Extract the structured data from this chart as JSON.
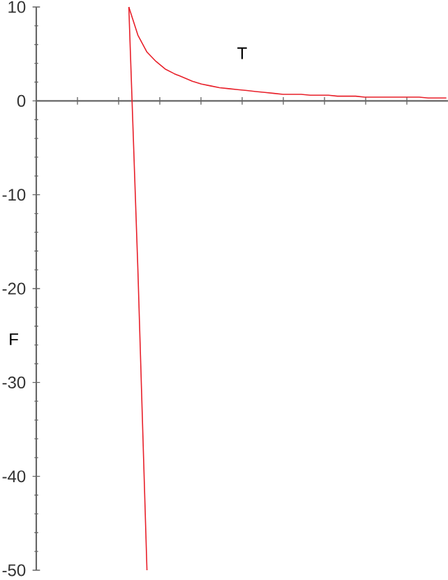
{
  "chart_data": {
    "type": "line",
    "xlabel": "T",
    "ylabel": "F",
    "ylim": [
      -50,
      10
    ],
    "yticks": [
      -50,
      -40,
      -30,
      -20,
      -10,
      0,
      10
    ],
    "tick_labels": "y",
    "categories": [
      null,
      null,
      null,
      null,
      null,
      null,
      null,
      null,
      null,
      null,
      null,
      null,
      null,
      null,
      null,
      null,
      null,
      null,
      null,
      null,
      null,
      null,
      null,
      null,
      null,
      null,
      null,
      null,
      null,
      null,
      null,
      null,
      null,
      null,
      null,
      null
    ],
    "series": [
      {
        "color": "#e8202a",
        "values": [
          10,
          7,
          5.2,
          4.2,
          3.4,
          2.9,
          2.5,
          2.1,
          1.8,
          1.6,
          1.4,
          1.3,
          1.2,
          1.1,
          1.0,
          0.9,
          0.8,
          0.7,
          0.7,
          0.7,
          0.6,
          0.6,
          0.6,
          0.5,
          0.5,
          0.5,
          0.4,
          0.4,
          0.4,
          0.4,
          0.4,
          0.4,
          0.4,
          0.3,
          0.3,
          0.3
        ]
      },
      {
        "color": "#e8202a",
        "values": [
          10,
          -18,
          -50,
          null,
          null,
          null,
          null,
          null,
          null,
          null,
          null,
          null,
          null,
          null,
          null,
          null,
          null,
          null,
          null,
          null,
          null,
          null,
          null,
          null,
          null,
          null,
          null,
          null,
          null,
          null,
          null,
          null,
          null,
          null,
          null,
          null
        ]
      }
    ]
  }
}
